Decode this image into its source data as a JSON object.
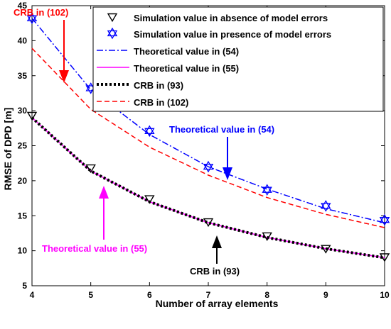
{
  "chart_data": {
    "type": "line",
    "title": "",
    "xlabel": "Number of array elements",
    "ylabel": "RMSE of DPD [m]",
    "xlim": [
      4,
      10
    ],
    "ylim": [
      5,
      45
    ],
    "xticks": [
      4,
      5,
      6,
      7,
      8,
      9,
      10
    ],
    "yticks": [
      5,
      10,
      15,
      20,
      25,
      30,
      35,
      40,
      45
    ],
    "x": [
      4,
      5,
      6,
      7,
      8,
      9,
      10
    ],
    "grid": false,
    "legend_position": "top-right",
    "series": [
      {
        "name": "Simulation value in absence of model errors",
        "style": "marker",
        "marker": "triangle-down",
        "color": "#000000",
        "values": [
          29.3,
          21.8,
          17.4,
          14.1,
          12.1,
          10.3,
          9.1
        ]
      },
      {
        "name": "Simulation value in presence of model errors",
        "style": "marker",
        "marker": "hexagram",
        "color": "#0000ff",
        "values": [
          43.2,
          33.2,
          27.1,
          22.0,
          18.7,
          16.4,
          14.4
        ]
      },
      {
        "name": "Theoretical value in (54)",
        "style": "dash-dot",
        "color": "#0000ff",
        "values": [
          43.2,
          33.0,
          26.6,
          22.0,
          18.8,
          16.0,
          14.0
        ]
      },
      {
        "name": "Theoretical value in (55)",
        "style": "solid",
        "color": "#ff00ff",
        "values": [
          29.0,
          21.4,
          17.0,
          14.0,
          11.9,
          10.3,
          9.0
        ]
      },
      {
        "name": "CRB in (93)",
        "style": "dotted-thick",
        "color": "#000000",
        "values": [
          29.0,
          21.4,
          17.0,
          14.0,
          11.9,
          10.3,
          9.0
        ]
      },
      {
        "name": "CRB in (102)",
        "style": "dashed",
        "color": "#ff0000",
        "values": [
          38.9,
          30.2,
          24.8,
          20.8,
          17.6,
          15.2,
          13.3
        ]
      }
    ],
    "annotations": [
      {
        "text": "CRB in (102)",
        "color": "#ff0000"
      },
      {
        "text": "Theoretical value in (54)",
        "color": "#0000ff"
      },
      {
        "text": "Theoretical value in (55)",
        "color": "#ff00ff"
      },
      {
        "text": "CRB in (93)",
        "color": "#000000"
      }
    ]
  }
}
